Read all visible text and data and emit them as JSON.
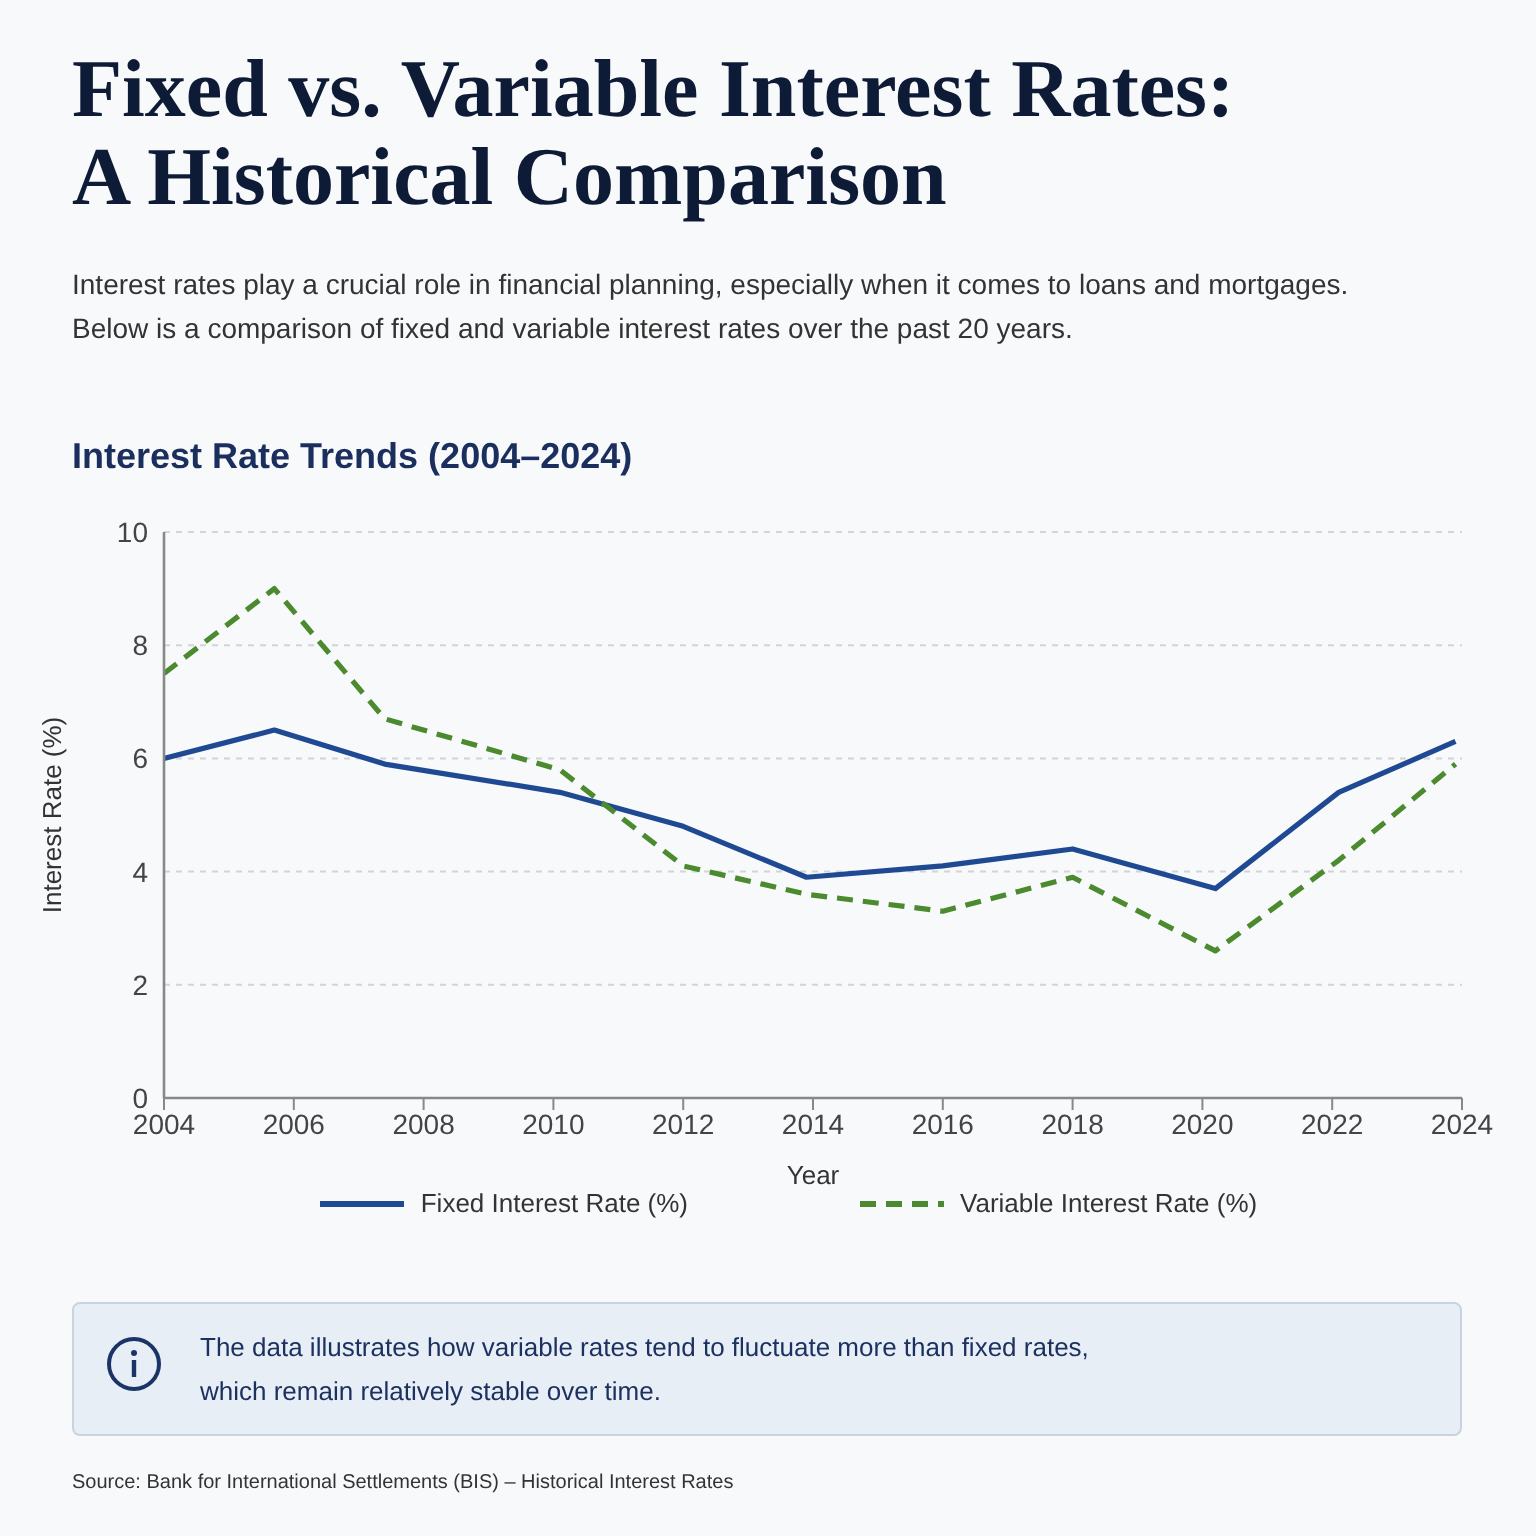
{
  "chart_data": {
    "type": "line",
    "title": "Fixed vs. Variable Interest Rates:\nA Historical Comparison",
    "subtitle": "Interest rates play a crucial role in financial planning, especially when it comes to loans and mortgages. Below is a comparison of fixed and variable interest rates over the past 20 years.",
    "xlabel": "Year",
    "ylabel": "Interest Rate (%)",
    "annotations": [
      "Interest Rate Trends (2004–2024)",
      "The data illustrates how variable rates tend to fluctuate more than fixed rates, which remain relatively stable over time.",
      "Source: Bank for International Settlements (BIS) – Historical Interest Rates"
    ],
    "x": [
      2004,
      2005.7,
      2007.4,
      2010.1,
      2012,
      2013.9,
      2016,
      2018,
      2020.2,
      2022.1,
      2023.9
    ],
    "series": [
      {
        "name": "Fixed Interest Rate (%)",
        "color": "#1f4a93",
        "line_style": "solid",
        "values": [
          6.0,
          6.5,
          5.9,
          5.4,
          4.8,
          3.9,
          4.1,
          4.4,
          3.7,
          5.4,
          6.3
        ]
      },
      {
        "name": "Variable Interest Rate (%)",
        "color": "#4b8a2f",
        "line_style": "dashed",
        "values": [
          7.5,
          9.0,
          6.7,
          5.8,
          4.1,
          3.6,
          3.3,
          3.9,
          2.6,
          4.2,
          5.9
        ]
      }
    ],
    "xlim": [
      2004,
      2024
    ],
    "xticks": [
      2004,
      2006,
      2008,
      2010,
      2012,
      2014,
      2016,
      2018,
      2020,
      2022,
      2024
    ],
    "ylim": [
      0,
      10
    ],
    "yticks": [
      0,
      2,
      4,
      6,
      8,
      10
    ],
    "grid": "y",
    "legend": "bottom"
  }
}
